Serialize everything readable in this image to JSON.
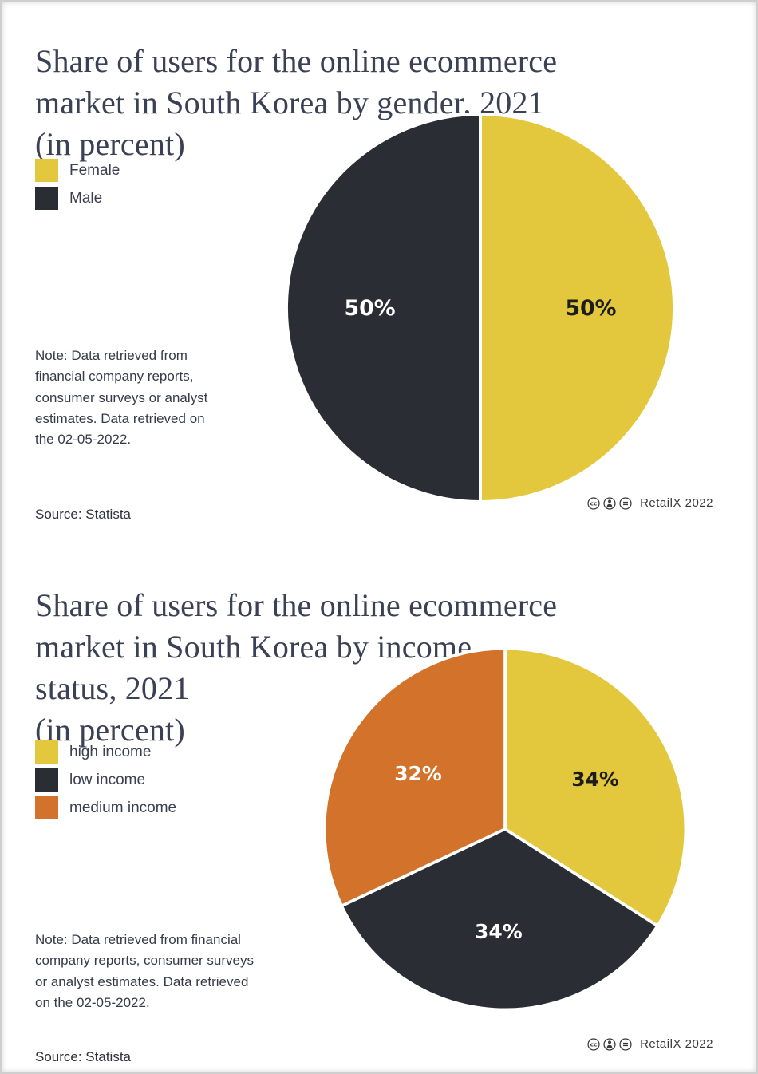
{
  "page": {
    "background": "#ffffff",
    "border_color": "#cfcfcf"
  },
  "chart_data": [
    {
      "type": "pie",
      "title": "Share of users for the online ecommerce market in South Korea by gender, 2021 (in percent)",
      "title_lines": [
        "Share of users for the online ecommerce",
        "market in South Korea by gender, 2021",
        "(in percent)"
      ],
      "labels": [
        "Female",
        "Male"
      ],
      "values": [
        50,
        50
      ],
      "value_labels": [
        "50%",
        "50%"
      ],
      "colors": [
        "#e3c83d",
        "#2a2d33"
      ],
      "value_label_colors": [
        "#1d1d1b",
        "#ffffff"
      ],
      "start_angle": 0,
      "legend_position": "left",
      "note": "Note: Data retrieved from financial company reports, consumer surveys or analyst estimates. Data retrieved on the 02-05-2022.",
      "source": "Source: Statista",
      "attribution": "RetailX 2022",
      "license_icons": [
        "cc-icon",
        "person-icon",
        "equals-icon"
      ]
    },
    {
      "type": "pie",
      "title": "Share of users for the online ecommerce market in South Korea by income status, 2021 (in percent)",
      "title_lines": [
        "Share of users for the online ecommerce",
        "market in South Korea by income",
        "status, 2021",
        "(in percent)"
      ],
      "labels": [
        "high income",
        "low income",
        "medium income"
      ],
      "values": [
        34,
        34,
        32
      ],
      "value_labels": [
        "34%",
        "34%",
        "32%"
      ],
      "colors": [
        "#e3c83d",
        "#2a2d33",
        "#d3732b"
      ],
      "value_label_colors": [
        "#1d1d1b",
        "#ffffff",
        "#ffffff"
      ],
      "start_angle": 0,
      "legend_position": "left",
      "note": "Note: Data retrieved from financial company reports, consumer surveys or analyst estimates. Data retrieved on the 02-05-2022.",
      "source": "Source: Statista",
      "attribution": "RetailX 2022",
      "license_icons": [
        "cc-icon",
        "person-icon",
        "equals-icon"
      ]
    }
  ]
}
